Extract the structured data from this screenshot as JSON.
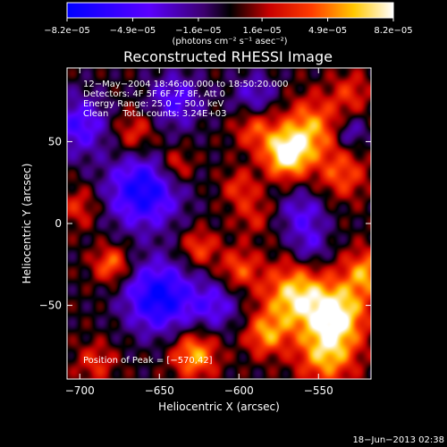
{
  "chart_data": {
    "type": "heatmap",
    "title": "Reconstructed RHESSI Image",
    "xlabel": "Heliocentric X (arcsec)",
    "ylabel": "Heliocentric Y (arcsec)",
    "xlim": [
      -708,
      -517
    ],
    "ylim": [
      -95,
      95
    ],
    "x_ticks": [
      -700,
      -650,
      -600,
      -550
    ],
    "x_tick_labels": [
      "−700",
      "−650",
      "−600",
      "−550"
    ],
    "y_ticks": [
      -50,
      0,
      50
    ],
    "y_tick_labels": [
      "−50",
      "0",
      "50"
    ],
    "colorbar": {
      "ticks": [
        -8.2e-05,
        -4.9e-05,
        -1.6e-05,
        1.6e-05,
        4.9e-05,
        8.2e-05
      ],
      "tick_labels": [
        "−8.2e−05",
        "−4.9e−05",
        "−1.6e−05",
        "1.6e−05",
        "4.9e−05",
        "8.2e−05"
      ],
      "unit_label": "(photons cm⁻² s⁻¹ asec⁻²)"
    },
    "annotations": [
      "12−May−2004 18:46:00.000 to 18:50:20.000",
      "Detectors: 4F 5F 6F 7F 8F, Att 0",
      "Energy Range: 25.0 − 50.0 keV",
      "Clean     Total counts: 3.24E+03"
    ],
    "peak_label": "Position of Peak = [−570,42]",
    "blobs": [
      {
        "x": -570,
        "y": 42,
        "value": 8.2e-05,
        "sigma": 10
      },
      {
        "x": -555,
        "y": 58,
        "value": 5.5e-05,
        "sigma": 13
      },
      {
        "x": -590,
        "y": 58,
        "value": 4e-05,
        "sigma": 9
      },
      {
        "x": -535,
        "y": 30,
        "value": 4e-05,
        "sigma": 11
      },
      {
        "x": -565,
        "y": -45,
        "value": 7e-05,
        "sigma": 14
      },
      {
        "x": -538,
        "y": -55,
        "value": 7.5e-05,
        "sigma": 13
      },
      {
        "x": -545,
        "y": -80,
        "value": 6e-05,
        "sigma": 13
      },
      {
        "x": -520,
        "y": -30,
        "value": 5.5e-05,
        "sigma": 10
      },
      {
        "x": -583,
        "y": -68,
        "value": 5e-05,
        "sigma": 9
      },
      {
        "x": -600,
        "y": -28,
        "value": 4e-05,
        "sigma": 9
      },
      {
        "x": -625,
        "y": -15,
        "value": 4e-05,
        "sigma": 8
      },
      {
        "x": -628,
        "y": -80,
        "value": 6e-05,
        "sigma": 10
      },
      {
        "x": -680,
        "y": -25,
        "value": 5e-05,
        "sigma": 8
      },
      {
        "x": -690,
        "y": -85,
        "value": 3e-05,
        "sigma": 9
      },
      {
        "x": -700,
        "y": 10,
        "value": 3e-05,
        "sigma": 9
      },
      {
        "x": -665,
        "y": 55,
        "value": 3.5e-05,
        "sigma": 10
      },
      {
        "x": -640,
        "y": 35,
        "value": 4e-05,
        "sigma": 8
      },
      {
        "x": -600,
        "y": 22,
        "value": 3e-05,
        "sigma": 8
      },
      {
        "x": -590,
        "y": 5,
        "value": 2.5e-05,
        "sigma": 9
      },
      {
        "x": -530,
        "y": 80,
        "value": 3e-05,
        "sigma": 9
      },
      {
        "x": -660,
        "y": 20,
        "value": -7.5e-05,
        "sigma": 16
      },
      {
        "x": -650,
        "y": -45,
        "value": -8e-05,
        "sigma": 15
      },
      {
        "x": -615,
        "y": -50,
        "value": -4e-05,
        "sigma": 11
      },
      {
        "x": -700,
        "y": 60,
        "value": -5e-05,
        "sigma": 13
      },
      {
        "x": -640,
        "y": 75,
        "value": -4.5e-05,
        "sigma": 12
      },
      {
        "x": -560,
        "y": 5,
        "value": -4e-05,
        "sigma": 11
      },
      {
        "x": -590,
        "y": 78,
        "value": -3.5e-05,
        "sigma": 10
      },
      {
        "x": -555,
        "y": -15,
        "value": -3e-05,
        "sigma": 8
      },
      {
        "x": -530,
        "y": 55,
        "value": -3.5e-05,
        "sigma": 7
      }
    ]
  },
  "footer": {
    "timestamp": "18−Jun−2013 02:38"
  }
}
